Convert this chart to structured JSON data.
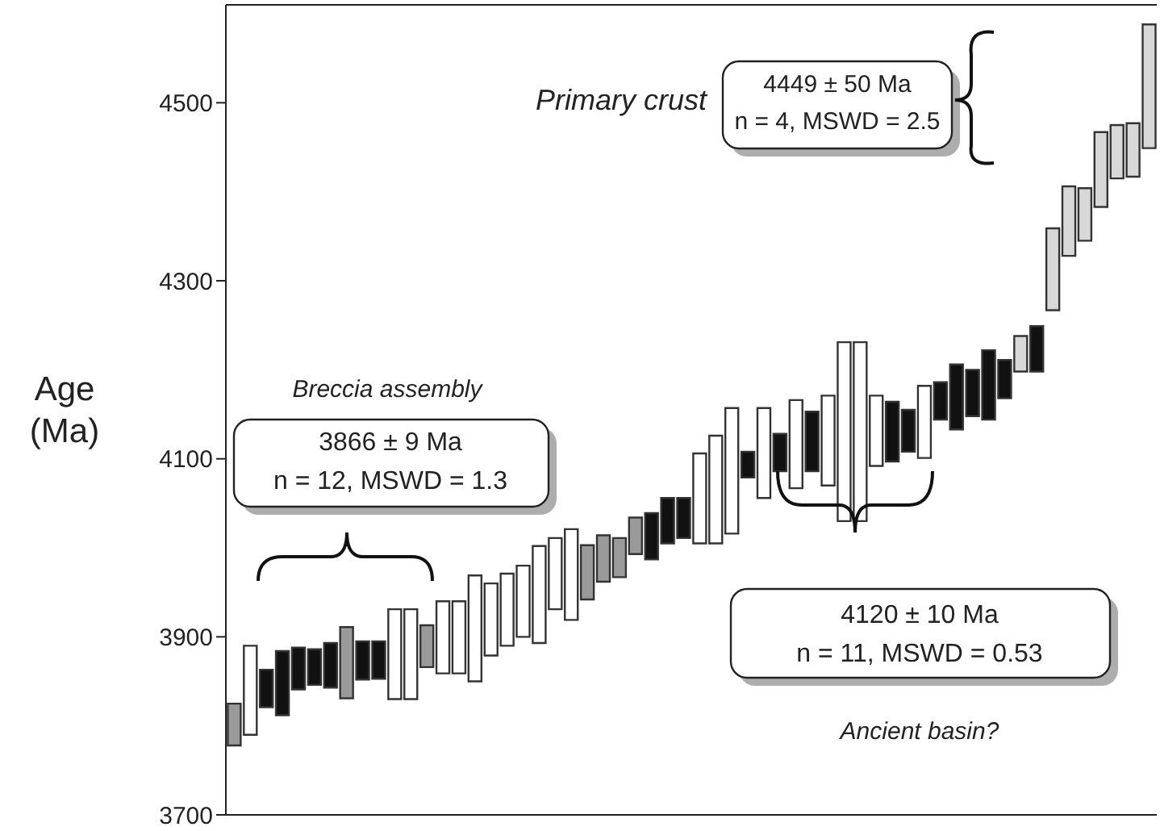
{
  "chart_data": {
    "type": "bar",
    "ylabel": "Age\n(Ma)",
    "categories": [
      null,
      null,
      null,
      null,
      null,
      null,
      null,
      null,
      null,
      null,
      null,
      null,
      null,
      null,
      null,
      null,
      null,
      null,
      null,
      null,
      null,
      null,
      null,
      null,
      null,
      null,
      null,
      null,
      null,
      null,
      null,
      null,
      null,
      null,
      null,
      null,
      null,
      null,
      null,
      null,
      null,
      null,
      null,
      null,
      null,
      null,
      null,
      null,
      null,
      null,
      null,
      null,
      null,
      null,
      null,
      null,
      null,
      null
    ],
    "base": [
      3778,
      3790,
      3821,
      3812,
      3841,
      3846,
      3843,
      3831,
      3852,
      3853,
      3830,
      3830,
      3866,
      3859,
      3859,
      3850,
      3879,
      3890,
      3900,
      3893,
      3931,
      3919,
      3942,
      3962,
      3967,
      3993,
      3987,
      4005,
      4011,
      4005,
      4005,
      4016,
      4079,
      4056,
      4086,
      4067,
      4086,
      4070,
      4030,
      4030,
      4092,
      4097,
      4108,
      4101,
      4144,
      4133,
      4148,
      4144,
      4168,
      4198,
      4198,
      4267,
      4328,
      4345,
      4383,
      4415,
      4417,
      4449
    ],
    "values": [
      47,
      100,
      42,
      72,
      47,
      40,
      50,
      80,
      43,
      42,
      101,
      101,
      47,
      81,
      81,
      119,
      81,
      81,
      80,
      109,
      80,
      102,
      61,
      52,
      44,
      41,
      52,
      51,
      45,
      101,
      121,
      141,
      29,
      101,
      42,
      99,
      67,
      101,
      201,
      201,
      79,
      67,
      47,
      81,
      42,
      73,
      52,
      78,
      43,
      40,
      51,
      92,
      78,
      59,
      84,
      60,
      60,
      139
    ],
    "colors": [
      "#9a9a9a",
      "#ffffff",
      "#111111",
      "#111111",
      "#111111",
      "#111111",
      "#111111",
      "#9a9a9a",
      "#111111",
      "#111111",
      "#ffffff",
      "#ffffff",
      "#9a9a9a",
      "#ffffff",
      "#ffffff",
      "#ffffff",
      "#ffffff",
      "#ffffff",
      "#ffffff",
      "#ffffff",
      "#ffffff",
      "#ffffff",
      "#9a9a9a",
      "#9a9a9a",
      "#9a9a9a",
      "#9a9a9a",
      "#111111",
      "#111111",
      "#111111",
      "#ffffff",
      "#ffffff",
      "#ffffff",
      "#111111",
      "#ffffff",
      "#111111",
      "#ffffff",
      "#111111",
      "#ffffff",
      "#ffffff",
      "#ffffff",
      "#ffffff",
      "#111111",
      "#111111",
      "#ffffff",
      "#111111",
      "#111111",
      "#111111",
      "#111111",
      "#111111",
      "#d8d8d8",
      "#111111",
      "#d8d8d8",
      "#d8d8d8",
      "#d8d8d8",
      "#d8d8d8",
      "#d8d8d8",
      "#d8d8d8",
      "#d8d8d8"
    ],
    "ylim": [
      3700,
      4610
    ],
    "yticks": [
      3700,
      3900,
      4100,
      4300,
      4500
    ],
    "tick_labels": "y",
    "annotations": [
      "Primary crust",
      "4449 ± 50 Ma",
      "n = 4, MSWD = 2.5",
      "Breccia assembly",
      "3866 ± 9  Ma",
      "n = 12, MSWD = 1.3",
      "4120 ± 10 Ma",
      "n = 11, MSWD = 0.53",
      "Ancient basin?"
    ]
  }
}
